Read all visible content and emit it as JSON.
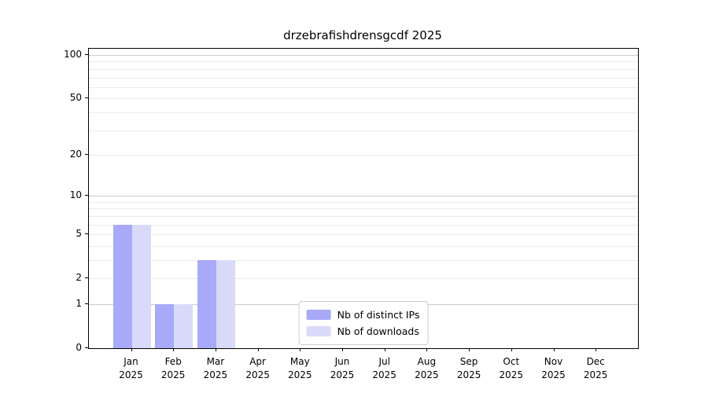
{
  "chart_data": {
    "type": "bar",
    "title": "drzebrafishdrensgcdf 2025",
    "categories": [
      "Jan",
      "Feb",
      "Mar",
      "Apr",
      "May",
      "Jun",
      "Jul",
      "Aug",
      "Sep",
      "Oct",
      "Nov",
      "Dec"
    ],
    "year_label": "2025",
    "series": [
      {
        "name": "Nb of distinct IPs",
        "color": "#a9a9f9",
        "values": [
          6,
          1,
          3,
          0,
          0,
          0,
          0,
          0,
          0,
          0,
          0,
          0
        ]
      },
      {
        "name": "Nb of downloads",
        "color": "#d9d9fa",
        "values": [
          6,
          1,
          3,
          0,
          0,
          0,
          0,
          0,
          0,
          0,
          0,
          0
        ]
      }
    ],
    "y_axis": {
      "scale": "log1p",
      "ylim": [
        0,
        110
      ],
      "tick_values": [
        100,
        50,
        20,
        10,
        5,
        2,
        1,
        0
      ],
      "minor_gridlines": [
        2,
        3,
        4,
        5,
        6,
        7,
        8,
        9,
        20,
        30,
        40,
        50,
        60,
        70,
        80,
        90
      ],
      "major_gridlines": [
        1,
        10,
        100
      ]
    },
    "legend": {
      "position": "lower center"
    },
    "colors": {
      "grid_minor": "#ebebeb",
      "grid_major": "#cbcbcb",
      "spine": "#000000",
      "legend_border": "#cccccc",
      "background": "#ffffff"
    }
  }
}
